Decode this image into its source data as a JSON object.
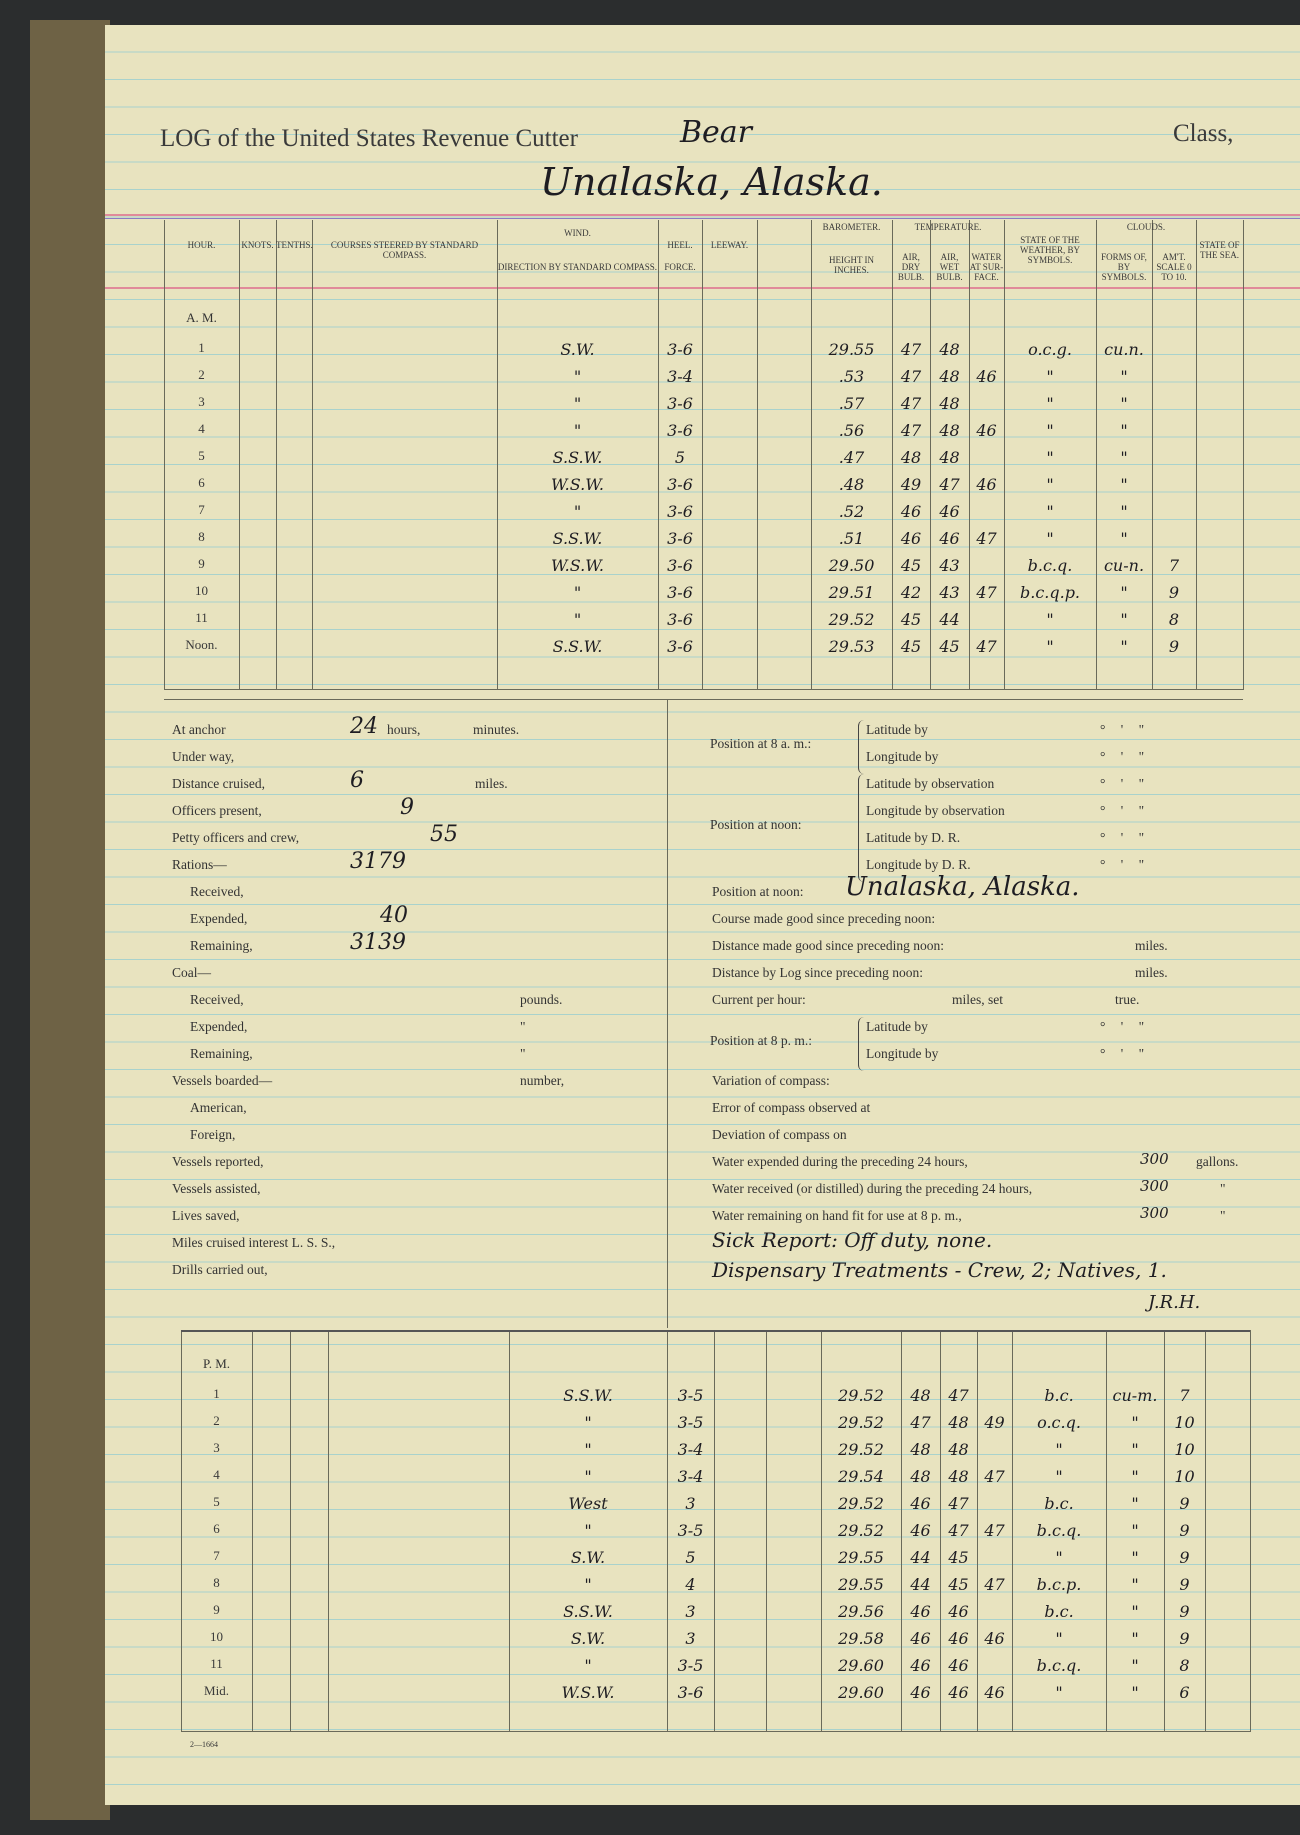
{
  "header": {
    "title_prefix": "LOG of the United States Revenue Cutter",
    "vessel": "Bear",
    "class_label": "Class,",
    "location": "Unalaska, Alaska."
  },
  "columns": {
    "hour": "HOUR.",
    "knots": "KNOTS.",
    "tenths": "TENTHS.",
    "courses": "COURSES STEERED BY STANDARD COMPASS.",
    "wind": "WIND.",
    "wind_dir": "DIRECTION BY STANDARD COMPASS.",
    "force": "FORCE.",
    "heel": "HEEL.",
    "leeway": "LEEWAY.",
    "barometer": "BAROMETER.",
    "height": "HEIGHT IN INCHES.",
    "temperature": "TEMPERATURE.",
    "dry": "AIR, DRY BULB.",
    "wet": "AIR, WET BULB.",
    "water": "WATER AT SUR-FACE.",
    "weather": "STATE OF THE WEATHER, BY SYMBOLS.",
    "clouds": "CLOUDS.",
    "forms": "FORMS OF, BY SYMBOLS.",
    "amount": "AM'T. SCALE 0 TO 10.",
    "sea": "STATE OF THE SEA."
  },
  "am": {
    "label": "A. M.",
    "rows": [
      [
        "1",
        "S.W.",
        "3-6",
        "29.55",
        "47",
        "48",
        "",
        "o.c.g.",
        "cu.n.",
        ""
      ],
      [
        "2",
        "\"",
        "3-4",
        ".53",
        "47",
        "48",
        "46",
        "\"",
        "\"",
        ""
      ],
      [
        "3",
        "\"",
        "3-6",
        ".57",
        "47",
        "48",
        "",
        "\"",
        "\"",
        ""
      ],
      [
        "4",
        "\"",
        "3-6",
        ".56",
        "47",
        "48",
        "46",
        "\"",
        "\"",
        ""
      ],
      [
        "5",
        "S.S.W.",
        "5",
        ".47",
        "48",
        "48",
        "",
        "\"",
        "\"",
        ""
      ],
      [
        "6",
        "W.S.W.",
        "3-6",
        ".48",
        "49",
        "47",
        "46",
        "\"",
        "\"",
        ""
      ],
      [
        "7",
        "\"",
        "3-6",
        ".52",
        "46",
        "46",
        "",
        "\"",
        "\"",
        ""
      ],
      [
        "8",
        "S.S.W.",
        "3-6",
        ".51",
        "46",
        "46",
        "47",
        "\"",
        "\"",
        ""
      ],
      [
        "9",
        "W.S.W.",
        "3-6",
        "29.50",
        "45",
        "43",
        "",
        "b.c.q.",
        "cu-n.",
        "7"
      ],
      [
        "10",
        "\"",
        "3-6",
        "29.51",
        "42",
        "43",
        "47",
        "b.c.q.p.",
        "\"",
        "9"
      ],
      [
        "11",
        "\"",
        "3-6",
        "29.52",
        "45",
        "44",
        "",
        "\"",
        "\"",
        "8"
      ],
      [
        "Noon.",
        "S.S.W.",
        "3-6",
        "29.53",
        "45",
        "45",
        "47",
        "\"",
        "\"",
        "9"
      ]
    ]
  },
  "pm": {
    "label": "P. M.",
    "rows": [
      [
        "1",
        "S.S.W.",
        "3-5",
        "29.52",
        "48",
        "47",
        "",
        "b.c.",
        "cu-m.",
        "7"
      ],
      [
        "2",
        "\"",
        "3-5",
        "29.52",
        "47",
        "48",
        "49",
        "o.c.q.",
        "\"",
        "10"
      ],
      [
        "3",
        "\"",
        "3-4",
        "29.52",
        "48",
        "48",
        "",
        "\"",
        "\"",
        "10"
      ],
      [
        "4",
        "\"",
        "3-4",
        "29.54",
        "48",
        "48",
        "47",
        "\"",
        "\"",
        "10"
      ],
      [
        "5",
        "West",
        "3",
        "29.52",
        "46",
        "47",
        "",
        "b.c.",
        "\"",
        "9"
      ],
      [
        "6",
        "\"",
        "3-5",
        "29.52",
        "46",
        "47",
        "47",
        "b.c.q.",
        "\"",
        "9"
      ],
      [
        "7",
        "S.W.",
        "5",
        "29.55",
        "44",
        "45",
        "",
        "\"",
        "\"",
        "9"
      ],
      [
        "8",
        "\"",
        "4",
        "29.55",
        "44",
        "45",
        "47",
        "b.c.p.",
        "\"",
        "9"
      ],
      [
        "9",
        "S.S.W.",
        "3",
        "29.56",
        "46",
        "46",
        "",
        "b.c.",
        "\"",
        "9"
      ],
      [
        "10",
        "S.W.",
        "3",
        "29.58",
        "46",
        "46",
        "46",
        "\"",
        "\"",
        "9"
      ],
      [
        "11",
        "\"",
        "3-5",
        "29.60",
        "46",
        "46",
        "",
        "b.c.q.",
        "\"",
        "8"
      ],
      [
        "Mid.",
        "W.S.W.",
        "3-6",
        "29.60",
        "46",
        "46",
        "46",
        "\"",
        "\"",
        "6"
      ]
    ]
  },
  "left": [
    {
      "label": "At anchor",
      "value": "24",
      "suffix": "hours,",
      "suffix2": "minutes."
    },
    {
      "label": "Under way,"
    },
    {
      "label": "Distance cruised,",
      "value": "6",
      "suffix": "miles."
    },
    {
      "label": "Officers present,",
      "value": "9"
    },
    {
      "label": "Petty officers and crew,",
      "value": "55"
    },
    {
      "label": "Rations—",
      "value": "3179"
    },
    {
      "label": "Received,",
      "indent": true
    },
    {
      "label": "Expended,",
      "indent": true,
      "value": "40"
    },
    {
      "label": "Remaining,",
      "indent": true,
      "value": "3139"
    },
    {
      "label": "Coal—"
    },
    {
      "label": "Received,",
      "indent": true,
      "suffix": "pounds."
    },
    {
      "label": "Expended,",
      "indent": true,
      "suffix": "\""
    },
    {
      "label": "Remaining,",
      "indent": true,
      "suffix": "\""
    },
    {
      "label": "Vessels boarded—",
      "suffix": "number,"
    },
    {
      "label": "American,",
      "indent": true
    },
    {
      "label": "Foreign,",
      "indent": true
    },
    {
      "label": "Vessels reported,"
    },
    {
      "label": "Vessels assisted,"
    },
    {
      "label": "Lives saved,"
    },
    {
      "label": "Miles cruised interest L. S. S.,"
    },
    {
      "label": "Drills carried out,"
    }
  ],
  "right": {
    "pos8am": "Position at 8 a. m.:",
    "lat_by": "Latitude by",
    "long_by": "Longitude by",
    "posnoon": "Position at noon:",
    "lat_obs": "Latitude by observation",
    "long_obs": "Longitude by observation",
    "lat_dr": "Latitude by D. R.",
    "long_dr": "Longitude by D. R.",
    "deg": "°   '   \"",
    "lines": [
      {
        "label": "Position at noon:",
        "value": "Unalaska, Alaska."
      },
      {
        "label": "Course made good since preceding noon:"
      },
      {
        "label": "Distance made good since preceding noon:",
        "suffix": "miles."
      },
      {
        "label": "Distance by Log since preceding noon:",
        "suffix": "miles."
      },
      {
        "label": "Current per hour:",
        "mid": "miles, set",
        "suffix": "true."
      }
    ],
    "pos8pm": "Position at 8 p. m.:",
    "lines2": [
      {
        "label": "Variation of compass:"
      },
      {
        "label": "Error of compass observed at"
      },
      {
        "label": "Deviation of compass on"
      },
      {
        "label": "Water expended during the preceding 24 hours,",
        "value": "300",
        "suffix": "gallons."
      },
      {
        "label": "Water received (or distilled) during the preceding 24 hours,",
        "value": "300",
        "suffix": "\""
      },
      {
        "label": "Water remaining on hand fit for use at 8 p. m.,",
        "value": "300",
        "suffix": "\""
      }
    ],
    "sick": "Sick Report: Off duty, none.",
    "dispensary": "Dispensary Treatments - Crew, 2; Natives, 1.",
    "initials": "J.R.H."
  },
  "footer": {
    "form_no": "2—1664"
  }
}
